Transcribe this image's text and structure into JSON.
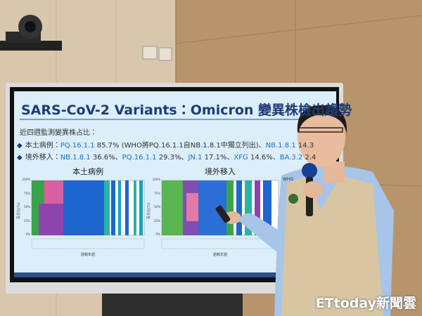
{
  "slide": {
    "title": "SARS-CoV-2 Variants：Omicron 變異株檢出趨勢",
    "subtitle": "近四週監測變異株占比：",
    "lines": [
      {
        "label": "本土病例：",
        "parts": [
          "PQ.16.1.1",
          " 85.7% (WHO將PQ.16.1.1自NB.1.8.1中獨立列出)、",
          "NB.1.8.1",
          " 14.3"
        ]
      },
      {
        "label": "境外移入：",
        "parts": [
          "NB.1.8.1",
          " 36.6%、",
          "PQ.16.1.1",
          " 29.3%、",
          "JN.1",
          " 17.1%、",
          "XFG",
          " 14.6%、",
          "BA.3.2",
          " 2.4"
        ]
      }
    ],
    "panels": [
      {
        "title": "本土病例",
        "yticks": [
          "100%",
          "75%",
          "50%",
          "25%",
          "0%"
        ],
        "ylabel": "百分比(%)",
        "xlabel": "週報年週"
      },
      {
        "title": "境外移入",
        "yticks": [
          "100%",
          "75%",
          "50%",
          "25%",
          "0%"
        ],
        "ylabel": "百分比(%)",
        "xlabel": "週報年週"
      }
    ],
    "legend_fragment": "WHO"
  },
  "watermark": "ETtoday新聞雲"
}
